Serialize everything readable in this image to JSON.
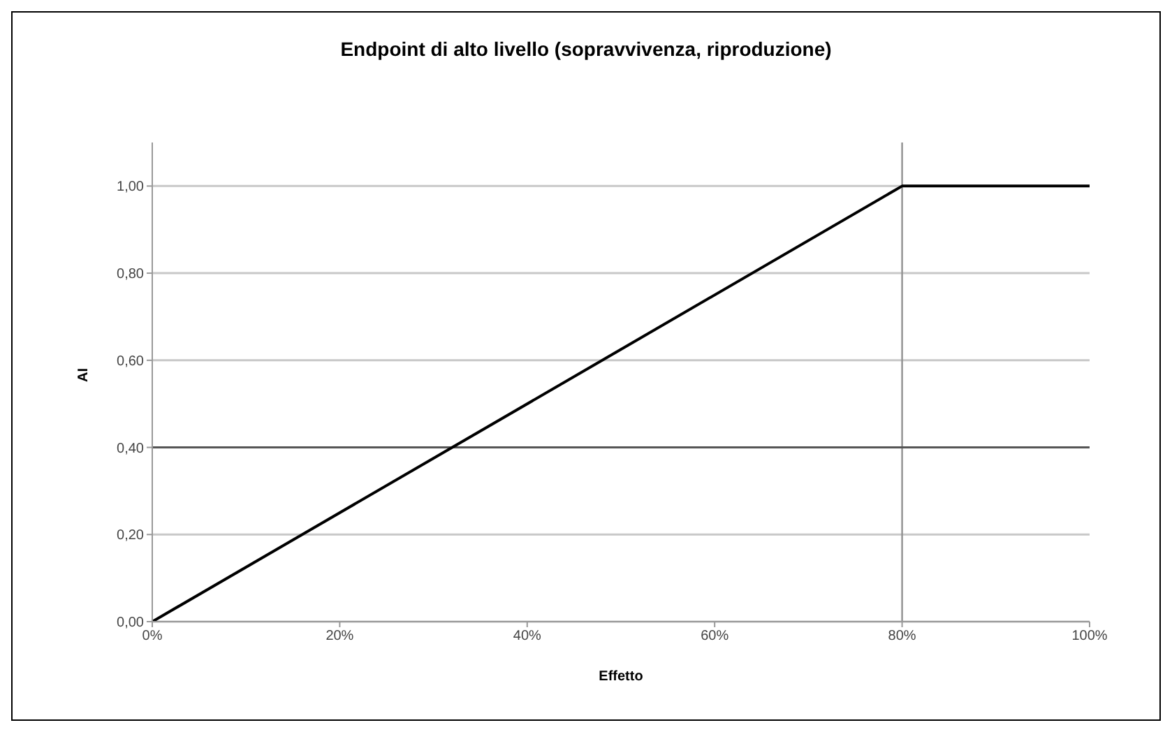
{
  "chart_data": {
    "type": "line",
    "title": "Endpoint di alto livello (sopravvivenza, riproduzione)",
    "xlabel": "Effetto",
    "ylabel": "AI",
    "x": [
      0,
      80,
      100
    ],
    "series": [
      {
        "color": "#000000",
        "values": [
          0,
          1,
          1
        ]
      }
    ],
    "xlim": [
      0,
      100
    ],
    "xticks": [
      {
        "value": 0,
        "label": "0%"
      },
      {
        "value": 20,
        "label": "20%"
      },
      {
        "value": 40,
        "label": "40%"
      },
      {
        "value": 60,
        "label": "60%"
      },
      {
        "value": 80,
        "label": "80%"
      },
      {
        "value": 100,
        "label": "100%"
      }
    ],
    "ylim": [
      0,
      1.1
    ],
    "yticks": [
      {
        "value": 0,
        "label": "0,00"
      },
      {
        "value": 0.2,
        "label": "0,20"
      },
      {
        "value": 0.4,
        "label": "0,40"
      },
      {
        "value": 0.6,
        "label": "0,60"
      },
      {
        "value": 0.8,
        "label": "0,80"
      },
      {
        "value": 1,
        "label": "1,00"
      }
    ],
    "ref_lines": [
      {
        "axis": "x",
        "value": 80,
        "color": "#909090"
      },
      {
        "axis": "y",
        "value": 0.4,
        "color": "#555555"
      }
    ],
    "grid": "y",
    "marker": "none",
    "line_style": "solid",
    "legend": false
  }
}
